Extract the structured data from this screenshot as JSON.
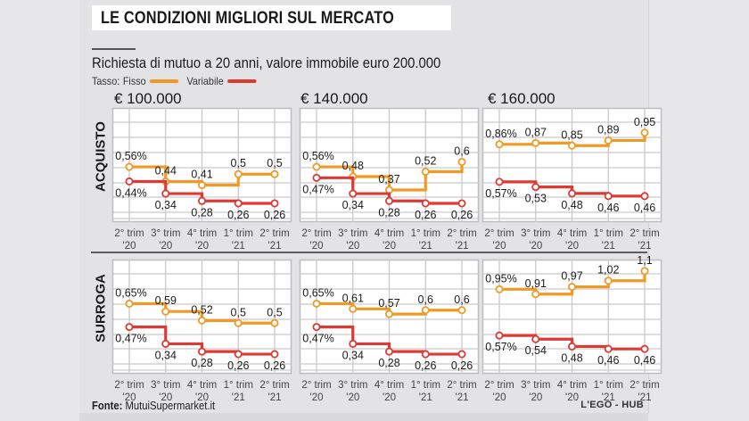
{
  "header": {
    "title": "LE CONDIZIONI MIGLIORI SUL MERCATO",
    "subtitle": "Richiesta di mutuo a 20 anni, valore immobile euro 200.000",
    "legend_prefix": "Tasso:",
    "source_label": "Fonte:",
    "source_value": "MutuiSupermarket.it",
    "credit": "L'EGO - HUB"
  },
  "colors": {
    "fisso": "#ef9a25",
    "variabile": "#dd3a35",
    "grid": "#c9c9cb",
    "panel_bg": "#ffffff",
    "page_bg": "#e3e3e5"
  },
  "chart_data": {
    "type": "line",
    "step": true,
    "title": "LE CONDIZIONI MIGLIORI SUL MERCATO",
    "subtitle": "Richiesta di mutuo a 20 anni, valore immobile euro 200.000",
    "legend": [
      {
        "name": "Fisso",
        "color": "#ef9a25"
      },
      {
        "name": "Variabile",
        "color": "#dd3a35"
      }
    ],
    "categories": [
      [
        "2° trim",
        "'20"
      ],
      [
        "3° trim",
        "'20"
      ],
      [
        "4° trim",
        "'20"
      ],
      [
        "1° trim",
        "'21"
      ],
      [
        "2° trim",
        "'21"
      ]
    ],
    "columns": [
      "€ 100.000",
      "€ 140.000",
      "€ 160.000"
    ],
    "rows": [
      "ACQUISTO",
      "SURROGA"
    ],
    "unit": "%",
    "ylim": [
      0.2,
      1.2
    ],
    "grid": true,
    "panels": [
      {
        "row": "ACQUISTO",
        "column": "€ 100.000",
        "series": [
          {
            "name": "Fisso",
            "values": [
              0.56,
              0.44,
              0.41,
              0.5,
              0.5
            ],
            "labels": [
              "0,56%",
              "0,44",
              "0,41",
              "0,5",
              "0,5"
            ]
          },
          {
            "name": "Variabile",
            "values": [
              0.44,
              0.34,
              0.28,
              0.26,
              0.26
            ],
            "labels": [
              "0,44%",
              "0,34",
              "0,28",
              "0,26",
              "0,26"
            ]
          }
        ]
      },
      {
        "row": "ACQUISTO",
        "column": "€ 140.000",
        "series": [
          {
            "name": "Fisso",
            "values": [
              0.56,
              0.48,
              0.37,
              0.52,
              0.6
            ],
            "labels": [
              "0,56%",
              "0,48",
              "0,37",
              "0,52",
              "0,6"
            ]
          },
          {
            "name": "Variabile",
            "values": [
              0.47,
              0.34,
              0.28,
              0.26,
              0.26
            ],
            "labels": [
              "0,47%",
              "0,34",
              "0,28",
              "0,26",
              "0,26"
            ]
          }
        ]
      },
      {
        "row": "ACQUISTO",
        "column": "€ 160.000",
        "series": [
          {
            "name": "Fisso",
            "values": [
              0.86,
              0.87,
              0.85,
              0.89,
              0.95
            ],
            "labels": [
              "0,86%",
              "0,87",
              "0,85",
              "0,89",
              "0,95"
            ]
          },
          {
            "name": "Variabile",
            "values": [
              0.57,
              0.53,
              0.48,
              0.46,
              0.46
            ],
            "labels": [
              "0,57%",
              "0,53",
              "0,48",
              "0,46",
              "0,46"
            ]
          }
        ]
      },
      {
        "row": "SURROGA",
        "column": "€ 100.000",
        "series": [
          {
            "name": "Fisso",
            "values": [
              0.65,
              0.59,
              0.52,
              0.5,
              0.5
            ],
            "labels": [
              "0,65%",
              "0,59",
              "0,52",
              "0,5",
              "0,5"
            ]
          },
          {
            "name": "Variabile",
            "values": [
              0.47,
              0.34,
              0.28,
              0.26,
              0.26
            ],
            "labels": [
              "0,47%",
              "0,34",
              "0,28",
              "0,26",
              "0,26"
            ]
          }
        ]
      },
      {
        "row": "SURROGA",
        "column": "€ 140.000",
        "series": [
          {
            "name": "Fisso",
            "values": [
              0.65,
              0.61,
              0.57,
              0.6,
              0.6
            ],
            "labels": [
              "0,65%",
              "0,61",
              "0,57",
              "0,6",
              "0,6"
            ]
          },
          {
            "name": "Variabile",
            "values": [
              0.47,
              0.34,
              0.28,
              0.26,
              0.26
            ],
            "labels": [
              "0,47%",
              "0,34",
              "0,28",
              "0,26",
              "0,26"
            ]
          }
        ]
      },
      {
        "row": "SURROGA",
        "column": "€ 160.000",
        "series": [
          {
            "name": "Fisso",
            "values": [
              0.95,
              0.91,
              0.97,
              1.02,
              1.1
            ],
            "labels": [
              "0,95%",
              "0,91",
              "0,97",
              "1,02",
              "1,1"
            ]
          },
          {
            "name": "Variabile",
            "values": [
              0.57,
              0.54,
              0.48,
              0.46,
              0.46
            ],
            "labels": [
              "0,57%",
              "0,54",
              "0,48",
              "0,46",
              "0,46"
            ]
          }
        ]
      }
    ]
  }
}
